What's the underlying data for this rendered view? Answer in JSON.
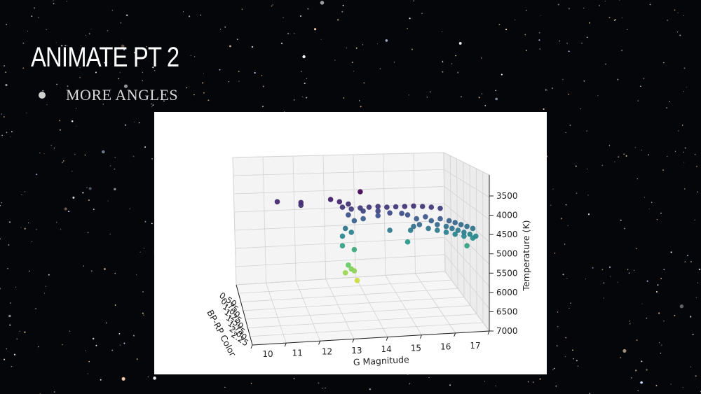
{
  "slide": {
    "title": "ANIMATE PT 2",
    "bullets": [
      "MORE ANGLES"
    ]
  },
  "chart_data": {
    "type": "scatter",
    "projection": "3d",
    "x_axis": {
      "label": "G Magnitude",
      "ticks": [
        10,
        11,
        12,
        13,
        14,
        15,
        16,
        17
      ]
    },
    "y_axis": {
      "label": "BP-RP Color",
      "ticks": [
        0.5,
        0.75,
        1.0,
        1.25,
        1.5,
        1.75,
        2.0,
        2.25
      ],
      "tick_labels": [
        "0.50",
        "0.75",
        "1.00",
        "1.25",
        "1.50",
        "1.75",
        "2.00",
        "2.25"
      ]
    },
    "z_axis": {
      "label": "Temperature (K)",
      "ticks": [
        3500,
        4000,
        4500,
        5000,
        5500,
        6000,
        6500,
        7000
      ],
      "inverted": true
    },
    "colormap": "viridis",
    "grid": true,
    "points": [
      {
        "x": 10.2,
        "z": 3760
      },
      {
        "x": 11.0,
        "z": 3780
      },
      {
        "x": 11.0,
        "z": 3850
      },
      {
        "x": 12.0,
        "z": 3700
      },
      {
        "x": 12.3,
        "z": 3760
      },
      {
        "x": 12.6,
        "z": 3820
      },
      {
        "x": 13.0,
        "z": 3500
      },
      {
        "x": 12.4,
        "z": 3900
      },
      {
        "x": 12.7,
        "z": 3950
      },
      {
        "x": 13.0,
        "z": 3920
      },
      {
        "x": 13.3,
        "z": 3900
      },
      {
        "x": 13.6,
        "z": 3880
      },
      {
        "x": 13.9,
        "z": 3900
      },
      {
        "x": 14.2,
        "z": 3890
      },
      {
        "x": 14.5,
        "z": 3880
      },
      {
        "x": 14.8,
        "z": 3870
      },
      {
        "x": 15.1,
        "z": 3880
      },
      {
        "x": 15.4,
        "z": 3900
      },
      {
        "x": 15.7,
        "z": 3930
      },
      {
        "x": 13.1,
        "z": 4000
      },
      {
        "x": 13.6,
        "z": 4000
      },
      {
        "x": 14.0,
        "z": 4050
      },
      {
        "x": 14.4,
        "z": 4060
      },
      {
        "x": 12.6,
        "z": 4100
      },
      {
        "x": 12.8,
        "z": 4250
      },
      {
        "x": 13.1,
        "z": 4200
      },
      {
        "x": 13.6,
        "z": 4120
      },
      {
        "x": 14.6,
        "z": 4100
      },
      {
        "x": 14.9,
        "z": 4200
      },
      {
        "x": 15.2,
        "z": 4150
      },
      {
        "x": 15.4,
        "z": 4250
      },
      {
        "x": 15.7,
        "z": 4200
      },
      {
        "x": 16.0,
        "z": 4250
      },
      {
        "x": 16.2,
        "z": 4300
      },
      {
        "x": 16.4,
        "z": 4350
      },
      {
        "x": 16.6,
        "z": 4400
      },
      {
        "x": 16.8,
        "z": 4450
      },
      {
        "x": 15.6,
        "z": 4350
      },
      {
        "x": 15.9,
        "z": 4400
      },
      {
        "x": 16.1,
        "z": 4450
      },
      {
        "x": 16.3,
        "z": 4500
      },
      {
        "x": 16.5,
        "z": 4550
      },
      {
        "x": 16.7,
        "z": 4600
      },
      {
        "x": 16.9,
        "z": 4650
      },
      {
        "x": 15.3,
        "z": 4450
      },
      {
        "x": 15.6,
        "z": 4500
      },
      {
        "x": 15.9,
        "z": 4550
      },
      {
        "x": 16.2,
        "z": 4600
      },
      {
        "x": 16.5,
        "z": 4650
      },
      {
        "x": 16.8,
        "z": 4700
      },
      {
        "x": 15.0,
        "z": 4350
      },
      {
        "x": 14.8,
        "z": 4400
      },
      {
        "x": 14.7,
        "z": 4500
      },
      {
        "x": 14.6,
        "z": 4800
      },
      {
        "x": 14.0,
        "z": 4500
      },
      {
        "x": 12.5,
        "z": 4450
      },
      {
        "x": 12.7,
        "z": 4550
      },
      {
        "x": 12.4,
        "z": 4650
      },
      {
        "x": 12.4,
        "z": 4900
      },
      {
        "x": 12.8,
        "z": 5000
      },
      {
        "x": 12.6,
        "z": 5400
      },
      {
        "x": 12.7,
        "z": 5500
      },
      {
        "x": 12.5,
        "z": 5600
      },
      {
        "x": 12.8,
        "z": 5550
      },
      {
        "x": 12.9,
        "z": 5800
      },
      {
        "x": 16.6,
        "z": 4900
      }
    ]
  }
}
